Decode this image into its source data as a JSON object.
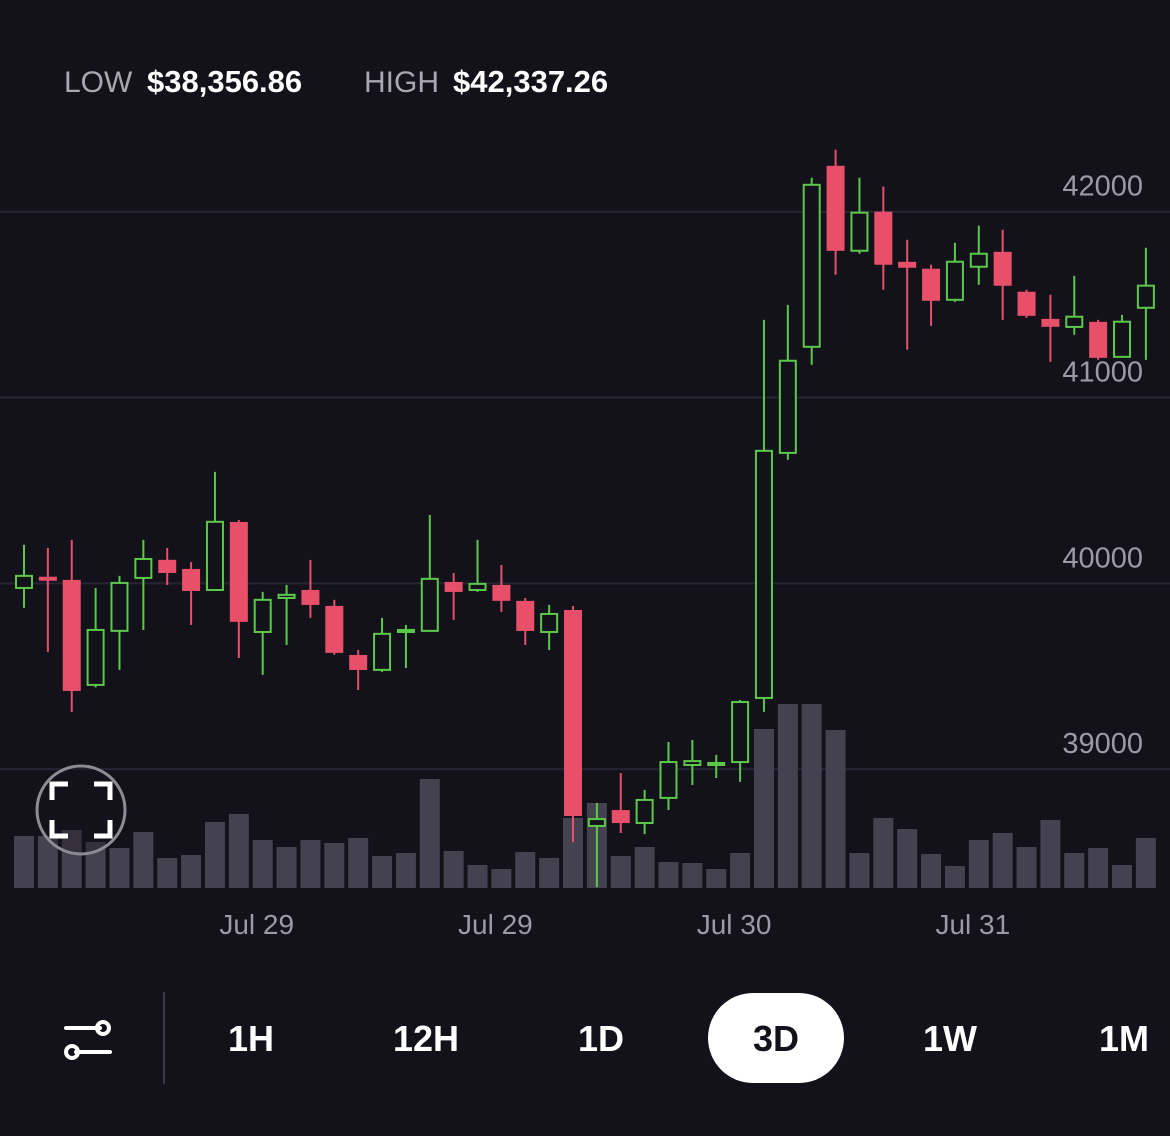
{
  "chart_data": {
    "type": "candlestick",
    "low_label": "LOW",
    "low_value": "$38,356.86",
    "high_label": "HIGH",
    "high_value": "$42,337.26",
    "categories": [
      null,
      null,
      null,
      null,
      null,
      null,
      null,
      null,
      null,
      null,
      "Jul 29",
      null,
      null,
      null,
      null,
      null,
      null,
      null,
      null,
      null,
      "Jul 29",
      null,
      null,
      null,
      null,
      null,
      null,
      null,
      null,
      null,
      "Jul 30",
      null,
      null,
      null,
      null,
      null,
      null,
      null,
      null,
      null,
      "Jul 31",
      null,
      null,
      null,
      null,
      null,
      null,
      null
    ],
    "open": [
      39975,
      40030,
      40013,
      39453,
      39744,
      40029,
      40121,
      40072,
      39964,
      40325,
      39738,
      39921,
      39959,
      39873,
      39609,
      39534,
      39738,
      39744,
      40002,
      39964,
      39986,
      39900,
      39738,
      39851,
      38694,
      38774,
      38710,
      38845,
      39022,
      39022,
      39038,
      39383,
      40702,
      41273,
      42242,
      41790,
      41995,
      41725,
      41688,
      41526,
      41704,
      41779,
      41564,
      41418,
      41380,
      41402,
      41219,
      41483
    ],
    "high": [
      40207,
      40190,
      40234,
      39975,
      40040,
      40234,
      40191,
      40115,
      40600,
      40341,
      39954,
      39991,
      40126,
      39911,
      39641,
      39814,
      39776,
      40368,
      40056,
      40234,
      40099,
      39921,
      39884,
      39878,
      38818,
      38979,
      38888,
      39146,
      39157,
      39076,
      39372,
      41418,
      41499,
      42183,
      42334,
      42183,
      42135,
      41849,
      41715,
      41833,
      41925,
      41903,
      41580,
      41553,
      41655,
      41418,
      41445,
      41806
    ],
    "low": [
      39868,
      39631,
      39308,
      39440,
      39534,
      39749,
      39991,
      39776,
      39964,
      39598,
      39507,
      39668,
      39814,
      39615,
      39426,
      39523,
      39544,
      39744,
      39803,
      39954,
      39846,
      39668,
      39641,
      38607,
      38365,
      38656,
      38650,
      38780,
      38914,
      38952,
      38931,
      39308,
      40665,
      41176,
      41661,
      41774,
      41580,
      41257,
      41386,
      41515,
      41607,
      41418,
      41429,
      41192,
      41338,
      41203,
      41219,
      41203
    ],
    "close": [
      40040,
      40020,
      39426,
      39749,
      40002,
      40131,
      40061,
      39964,
      40331,
      39798,
      39911,
      39938,
      39889,
      39631,
      39539,
      39728,
      39749,
      40024,
      39959,
      39997,
      39911,
      39749,
      39835,
      38753,
      38731,
      38715,
      38834,
      39038,
      39043,
      39033,
      39361,
      40713,
      41198,
      42145,
      41795,
      41995,
      41720,
      41704,
      41526,
      41731,
      41774,
      41607,
      41445,
      41386,
      41435,
      41219,
      41408,
      41602
    ],
    "volume": [
      52,
      52,
      58,
      46,
      40,
      56,
      30,
      33,
      66,
      74,
      48,
      41,
      48,
      45,
      50,
      32,
      35,
      109,
      37,
      23,
      19,
      36,
      30,
      70,
      85,
      32,
      41,
      26,
      25,
      19,
      35,
      159,
      184,
      184,
      158,
      35,
      70,
      59,
      34,
      22,
      48,
      55,
      41,
      68,
      35,
      40,
      23,
      50
    ],
    "up_color": "#5cc84a",
    "down_color": "#e8506a",
    "volume_color": "#45424f",
    "ylim": [
      38360,
      42440
    ],
    "yticks": [
      39000,
      40000,
      41000,
      42000
    ],
    "grid": true
  },
  "ranges": [
    "1H",
    "12H",
    "1D",
    "3D",
    "1W",
    "1M"
  ],
  "selected_range": "3D"
}
